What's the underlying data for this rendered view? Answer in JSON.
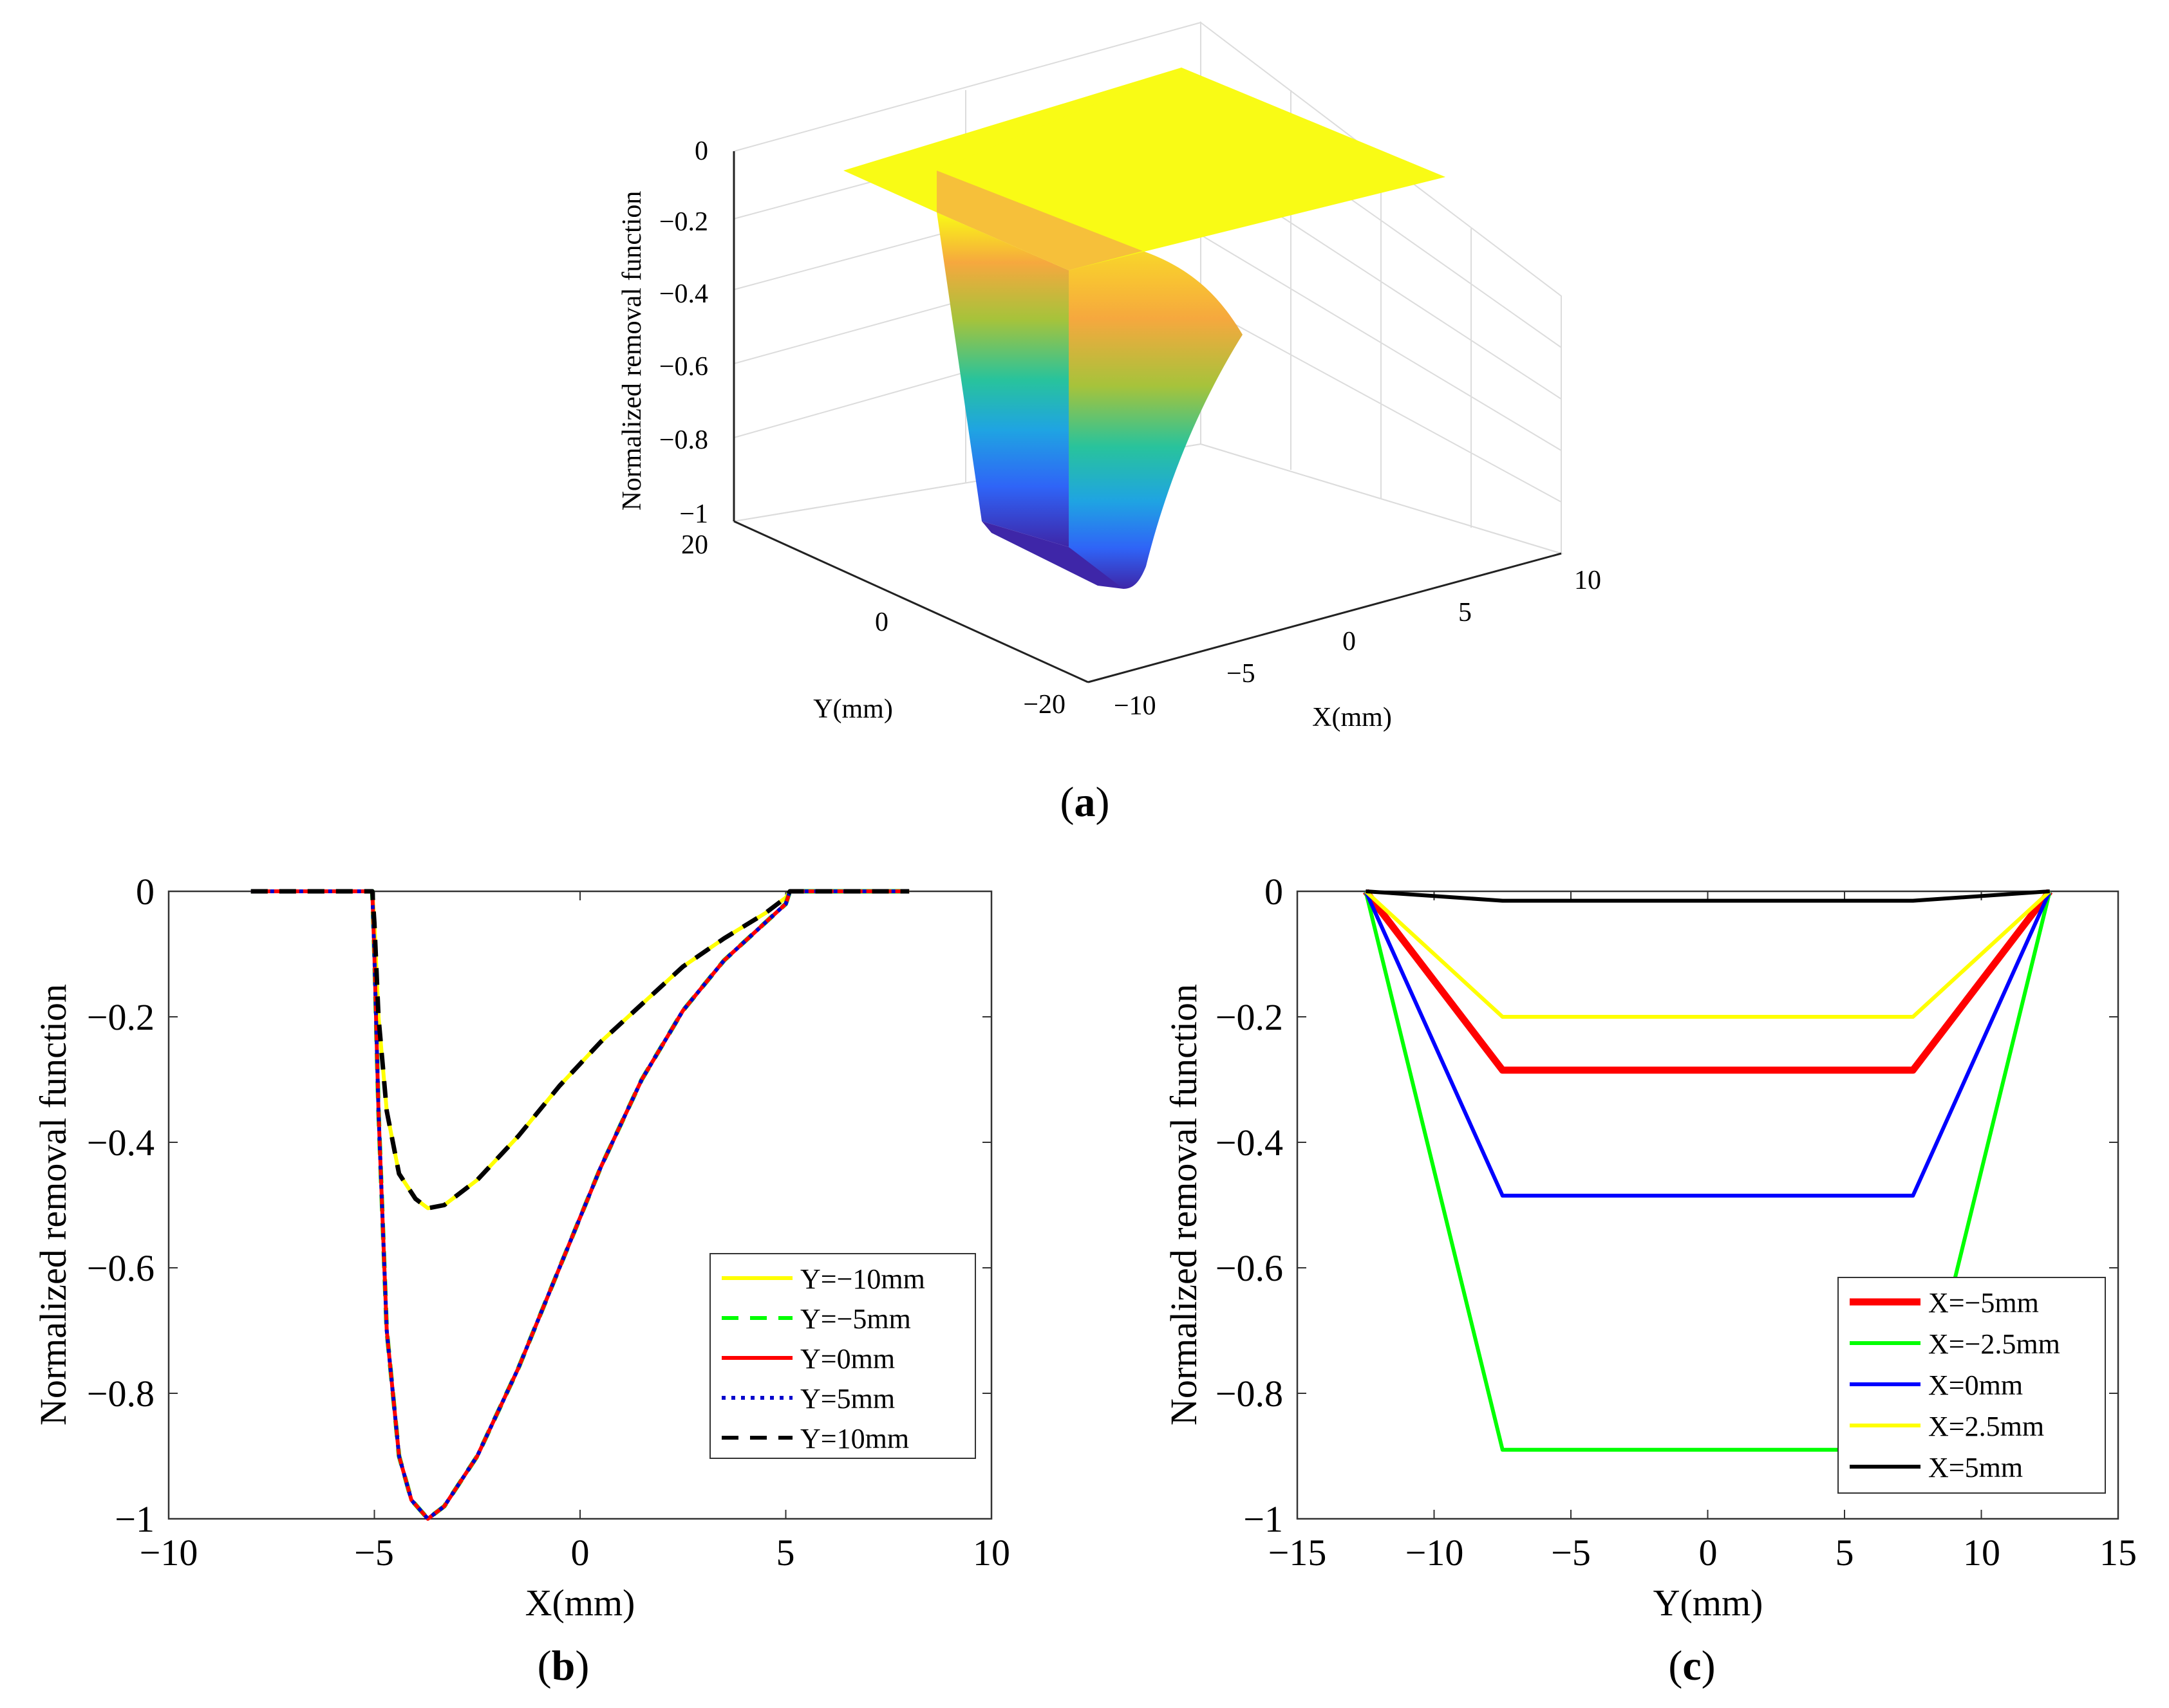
{
  "captions": {
    "a": "a",
    "b": "b",
    "c": "c"
  },
  "chart_data": [
    {
      "id": "a",
      "type": "surface",
      "title": "",
      "xlabel": "X(mm)",
      "ylabel": "Y(mm)",
      "zlabel": "Normalized removal function",
      "x_ticks": [
        "−10",
        "−5",
        "0",
        "5",
        "10"
      ],
      "y_ticks": [
        "−20",
        "0",
        "20"
      ],
      "z_ticks": [
        "0",
        "−0.2",
        "−0.4",
        "−0.6",
        "−0.8",
        "−1"
      ],
      "xlim": [
        -10,
        10
      ],
      "ylim": [
        -20,
        20
      ],
      "zlim": [
        -1,
        0
      ],
      "colormap": [
        "#3e26a8",
        "#2f64f7",
        "#1fa4e2",
        "#28c39c",
        "#a6c33b",
        "#f6a83e",
        "#f9fb15"
      ]
    },
    {
      "id": "b",
      "type": "line",
      "xlabel": "X(mm)",
      "ylabel": "Normalized removal function",
      "xlim": [
        -10,
        10
      ],
      "ylim": [
        -1,
        0
      ],
      "x_ticks": [
        "−10",
        "−5",
        "0",
        "5",
        "10"
      ],
      "y_ticks": [
        "0",
        "−0.2",
        "−0.4",
        "−0.6",
        "−0.8",
        "−1"
      ],
      "series": [
        {
          "name": "Y=−10mm",
          "color": "#ffff00",
          "dash": "solid",
          "x": [
            -8,
            -5.05,
            -5,
            -4.9,
            -4.7,
            -4.4,
            -4,
            -3.7,
            -3.3,
            -2.5,
            -1.5,
            -0.5,
            0.5,
            1.5,
            2.5,
            3.5,
            4.5,
            5,
            5.1,
            8
          ],
          "y": [
            0,
            0,
            -0.05,
            -0.2,
            -0.35,
            -0.45,
            -0.49,
            -0.505,
            -0.5,
            -0.46,
            -0.39,
            -0.31,
            -0.24,
            -0.18,
            -0.12,
            -0.075,
            -0.035,
            -0.01,
            0,
            0
          ]
        },
        {
          "name": "Y=−5mm",
          "color": "#00ff00",
          "dash": "dash",
          "x": [
            -8,
            -5.05,
            -5,
            -4.9,
            -4.7,
            -4.4,
            -4.1,
            -3.7,
            -3.3,
            -2.5,
            -1.5,
            -0.5,
            0.5,
            1.5,
            2.5,
            3.5,
            4.5,
            5,
            5.1,
            8
          ],
          "y": [
            0,
            0,
            -0.1,
            -0.35,
            -0.7,
            -0.9,
            -0.97,
            -1.0,
            -0.98,
            -0.9,
            -0.76,
            -0.6,
            -0.44,
            -0.3,
            -0.19,
            -0.11,
            -0.05,
            -0.02,
            0,
            0
          ]
        },
        {
          "name": "Y=0mm",
          "color": "#ff0000",
          "dash": "solid",
          "x": [
            -8,
            -5.05,
            -5,
            -4.9,
            -4.7,
            -4.4,
            -4.1,
            -3.7,
            -3.3,
            -2.5,
            -1.5,
            -0.5,
            0.5,
            1.5,
            2.5,
            3.5,
            4.5,
            5,
            5.1,
            8
          ],
          "y": [
            0,
            0,
            -0.1,
            -0.35,
            -0.7,
            -0.9,
            -0.97,
            -1.0,
            -0.98,
            -0.9,
            -0.76,
            -0.6,
            -0.44,
            -0.3,
            -0.19,
            -0.11,
            -0.05,
            -0.02,
            0,
            0
          ]
        },
        {
          "name": "Y=5mm",
          "color": "#0000cc",
          "dash": "dot",
          "x": [
            -8,
            -5.05,
            -5,
            -4.9,
            -4.7,
            -4.4,
            -4.1,
            -3.7,
            -3.3,
            -2.5,
            -1.5,
            -0.5,
            0.5,
            1.5,
            2.5,
            3.5,
            4.5,
            5,
            5.1,
            8
          ],
          "y": [
            0,
            0,
            -0.1,
            -0.35,
            -0.7,
            -0.9,
            -0.97,
            -1.0,
            -0.98,
            -0.9,
            -0.76,
            -0.6,
            -0.44,
            -0.3,
            -0.19,
            -0.11,
            -0.05,
            -0.02,
            0,
            0
          ]
        },
        {
          "name": "Y=10mm",
          "color": "#000000",
          "dash": "dash",
          "x": [
            -8,
            -5.05,
            -5,
            -4.9,
            -4.7,
            -4.4,
            -4,
            -3.7,
            -3.3,
            -2.5,
            -1.5,
            -0.5,
            0.5,
            1.5,
            2.5,
            3.5,
            4.5,
            5,
            5.1,
            8
          ],
          "y": [
            0,
            0,
            -0.05,
            -0.2,
            -0.35,
            -0.45,
            -0.49,
            -0.505,
            -0.5,
            -0.46,
            -0.39,
            -0.31,
            -0.24,
            -0.18,
            -0.12,
            -0.075,
            -0.035,
            -0.01,
            0,
            0
          ]
        }
      ],
      "legend": "bottom-right"
    },
    {
      "id": "c",
      "type": "line",
      "xlabel": "Y(mm)",
      "ylabel": "Normalized removal function",
      "xlim": [
        -15,
        15
      ],
      "ylim": [
        -1,
        0
      ],
      "x_ticks": [
        "−15",
        "−10",
        "−5",
        "0",
        "5",
        "10",
        "15"
      ],
      "y_ticks": [
        "0",
        "−0.2",
        "−0.4",
        "−0.6",
        "−0.8",
        "−1"
      ],
      "series": [
        {
          "name": "X=−5mm",
          "color": "#ff0000",
          "dash": "solid",
          "bold": true,
          "x": [
            -12.5,
            -7.5,
            7.5,
            12.5
          ],
          "y": [
            0,
            -0.285,
            -0.285,
            0
          ]
        },
        {
          "name": "X=−2.5mm",
          "color": "#00ff00",
          "dash": "solid",
          "x": [
            -12.5,
            -7.5,
            7.5,
            12.5
          ],
          "y": [
            0,
            -0.89,
            -0.89,
            0
          ]
        },
        {
          "name": "X=0mm",
          "color": "#0000ff",
          "dash": "solid",
          "x": [
            -12.5,
            -7.5,
            7.5,
            12.5
          ],
          "y": [
            0,
            -0.485,
            -0.485,
            0
          ]
        },
        {
          "name": "X=2.5mm",
          "color": "#ffff00",
          "dash": "solid",
          "x": [
            -12.5,
            -7.5,
            7.5,
            12.5
          ],
          "y": [
            0,
            -0.2,
            -0.2,
            0
          ]
        },
        {
          "name": "X=5mm",
          "color": "#000000",
          "dash": "solid",
          "x": [
            -12.5,
            -7.5,
            7.5,
            12.5
          ],
          "y": [
            0,
            -0.015,
            -0.015,
            0
          ]
        }
      ],
      "legend": "bottom-right"
    }
  ]
}
